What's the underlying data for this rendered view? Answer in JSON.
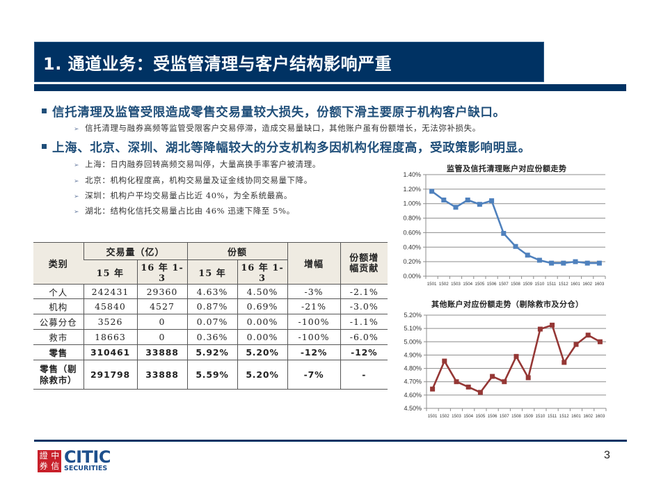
{
  "header": {
    "title": "1. 通道业务：受监管清理与客户结构影响严重"
  },
  "bullets": [
    {
      "text": "信托清理及监管受限造成零售交易量较大损失，份额下滑主要原于机构客户缺口。",
      "sub": [
        "信托清理与融券高频等监管受限客户交易停滞，造成交易量缺口，其他账户虽有份额增长，无法弥补损失。"
      ]
    },
    {
      "text": "上海、北京、深圳、湖北等降幅较大的分支机构多因机构化程度高，受政策影响明显。",
      "sub": [
        "上海：日内融券回转高频交易叫停，大量高换手率客户被清理。",
        "北京：机构化程度高，机构交易量及证金线协同交易量下降。",
        "深圳：机构户平均交易量占比近 40%，为全系统最高。",
        "湖北：结构化信托交易量占比由 46% 迅速下降至 5%。"
      ]
    }
  ],
  "table": {
    "header": {
      "category": "类别",
      "volume_group": "交易量（亿）",
      "share_group": "份额",
      "change": "增幅",
      "contribution": "份额增幅贡献",
      "sub": [
        "15 年",
        "16 年 1-3",
        "15 年",
        "16 年 1-3"
      ]
    },
    "rows": [
      {
        "cat": "个人",
        "v15": "242431",
        "v16": "29360",
        "s15": "4.63%",
        "s16": "4.50%",
        "chg": "-3%",
        "contrib": "-2.1%"
      },
      {
        "cat": "机构",
        "v15": "45840",
        "v16": "4527",
        "s15": "0.87%",
        "s16": "0.69%",
        "chg": "-21%",
        "contrib": "-3.0%"
      },
      {
        "cat": "公募分仓",
        "v15": "3526",
        "v16": "0",
        "s15": "0.07%",
        "s16": "0.00%",
        "chg": "-100%",
        "contrib": "-1.1%"
      },
      {
        "cat": "救市",
        "v15": "18663",
        "v16": "0",
        "s15": "0.36%",
        "s16": "0.00%",
        "chg": "-100%",
        "contrib": "-6.0%"
      },
      {
        "cat": "零售",
        "v15": "310461",
        "v16": "33888",
        "s15": "5.92%",
        "s16": "5.20%",
        "chg": "-12%",
        "contrib": "-12%"
      },
      {
        "cat": "零售（剔除救市）",
        "v15": "291798",
        "v16": "33888",
        "s15": "5.59%",
        "s16": "5.20%",
        "chg": "-7%",
        "contrib": "-"
      }
    ]
  },
  "chart_data": [
    {
      "type": "line",
      "title": "监管及信托清理账户对应份额走势",
      "categories": [
        "1501",
        "1502",
        "1503",
        "1504",
        "1505",
        "1506",
        "1507",
        "1508",
        "1509",
        "1510",
        "1511",
        "1512",
        "1601",
        "1602",
        "1603"
      ],
      "series": [
        {
          "name": "监管及信托清理账户份额",
          "color": "#4f81bd",
          "values": [
            1.17,
            1.05,
            0.95,
            1.05,
            0.99,
            1.04,
            0.59,
            0.41,
            0.29,
            0.22,
            0.18,
            0.18,
            0.2,
            0.18,
            0.18
          ]
        }
      ],
      "yticks": [
        "0.00%",
        "0.20%",
        "0.40%",
        "0.60%",
        "0.80%",
        "1.00%",
        "1.20%",
        "1.40%"
      ],
      "ylim": [
        0,
        1.4
      ],
      "xlabel": "",
      "ylabel": "",
      "grid": true,
      "legend": "none"
    },
    {
      "type": "line",
      "title": "其他账户对应份额走势（剔除救市及分仓）",
      "categories": [
        "1501",
        "1502",
        "1503",
        "1504",
        "1505",
        "1506",
        "1507",
        "1508",
        "1509",
        "1510",
        "1511",
        "1512",
        "1601",
        "1602",
        "1603"
      ],
      "series": [
        {
          "name": "其他账户份额",
          "color": "#953735",
          "values": [
            4.645,
            4.855,
            4.7,
            4.66,
            4.62,
            4.74,
            4.7,
            4.89,
            4.73,
            5.095,
            5.125,
            4.845,
            4.98,
            5.05,
            5.0
          ]
        }
      ],
      "yticks": [
        "4.50%",
        "4.60%",
        "4.70%",
        "4.80%",
        "4.90%",
        "5.00%",
        "5.10%",
        "5.20%"
      ],
      "ylim": [
        4.5,
        5.2
      ],
      "xlabel": "",
      "ylabel": "",
      "grid": true,
      "legend": "none"
    }
  ],
  "footer": {
    "logo_seal": [
      "證",
      "中",
      "券",
      "信"
    ],
    "logo_main": "CITIC",
    "logo_sub": "SECURITIES",
    "page_number": "3"
  }
}
